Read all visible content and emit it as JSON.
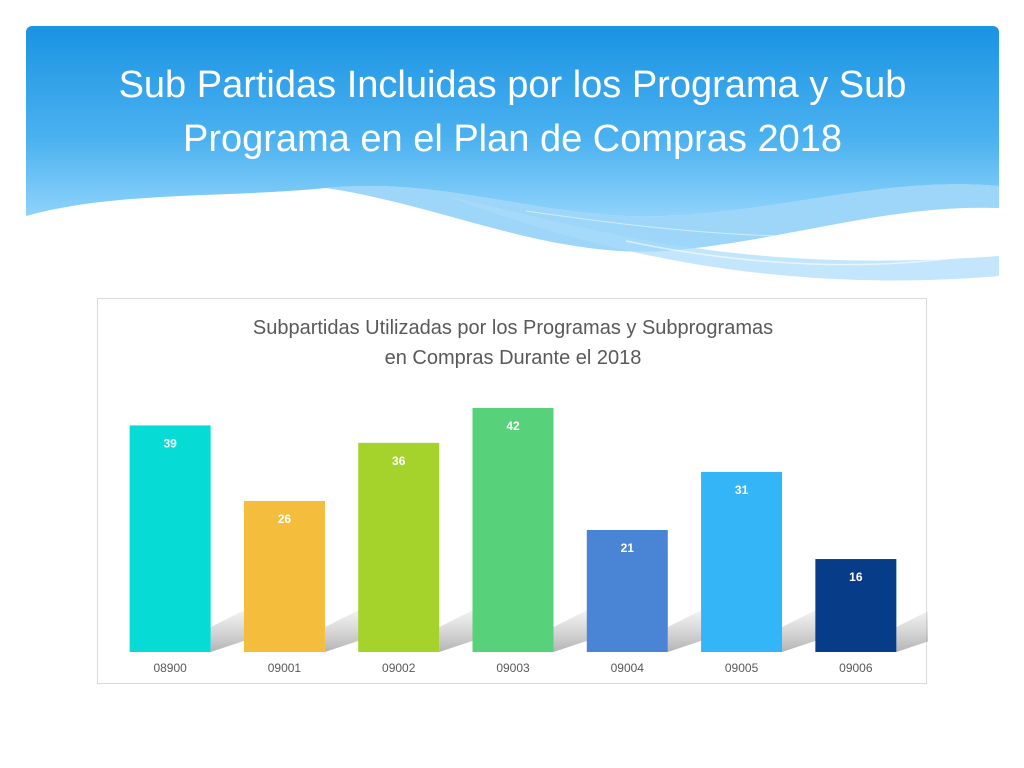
{
  "slide": {
    "title_line1": "Sub Partidas Incluidas por los  Programa y Sub",
    "title_line2": "Programa en el Plan de Compras 2018",
    "header_color": "#2f9fe8"
  },
  "chart_data": {
    "type": "bar",
    "title_line1": "Subpartidas Utilizadas por los Programas y Subprogramas",
    "title_line2": "en Compras Durante el 2018",
    "categories": [
      "08900",
      "09001",
      "09002",
      "09003",
      "09004",
      "09005",
      "09006"
    ],
    "values": [
      39,
      26,
      36,
      42,
      21,
      31,
      16
    ],
    "colors": [
      "#06dbd6",
      "#f4be3c",
      "#a6d22c",
      "#57d17a",
      "#4a84d4",
      "#34b5f8",
      "#073c88"
    ],
    "ylim": [
      0,
      42
    ],
    "grid": false,
    "legend": "none",
    "data_labels": true
  }
}
